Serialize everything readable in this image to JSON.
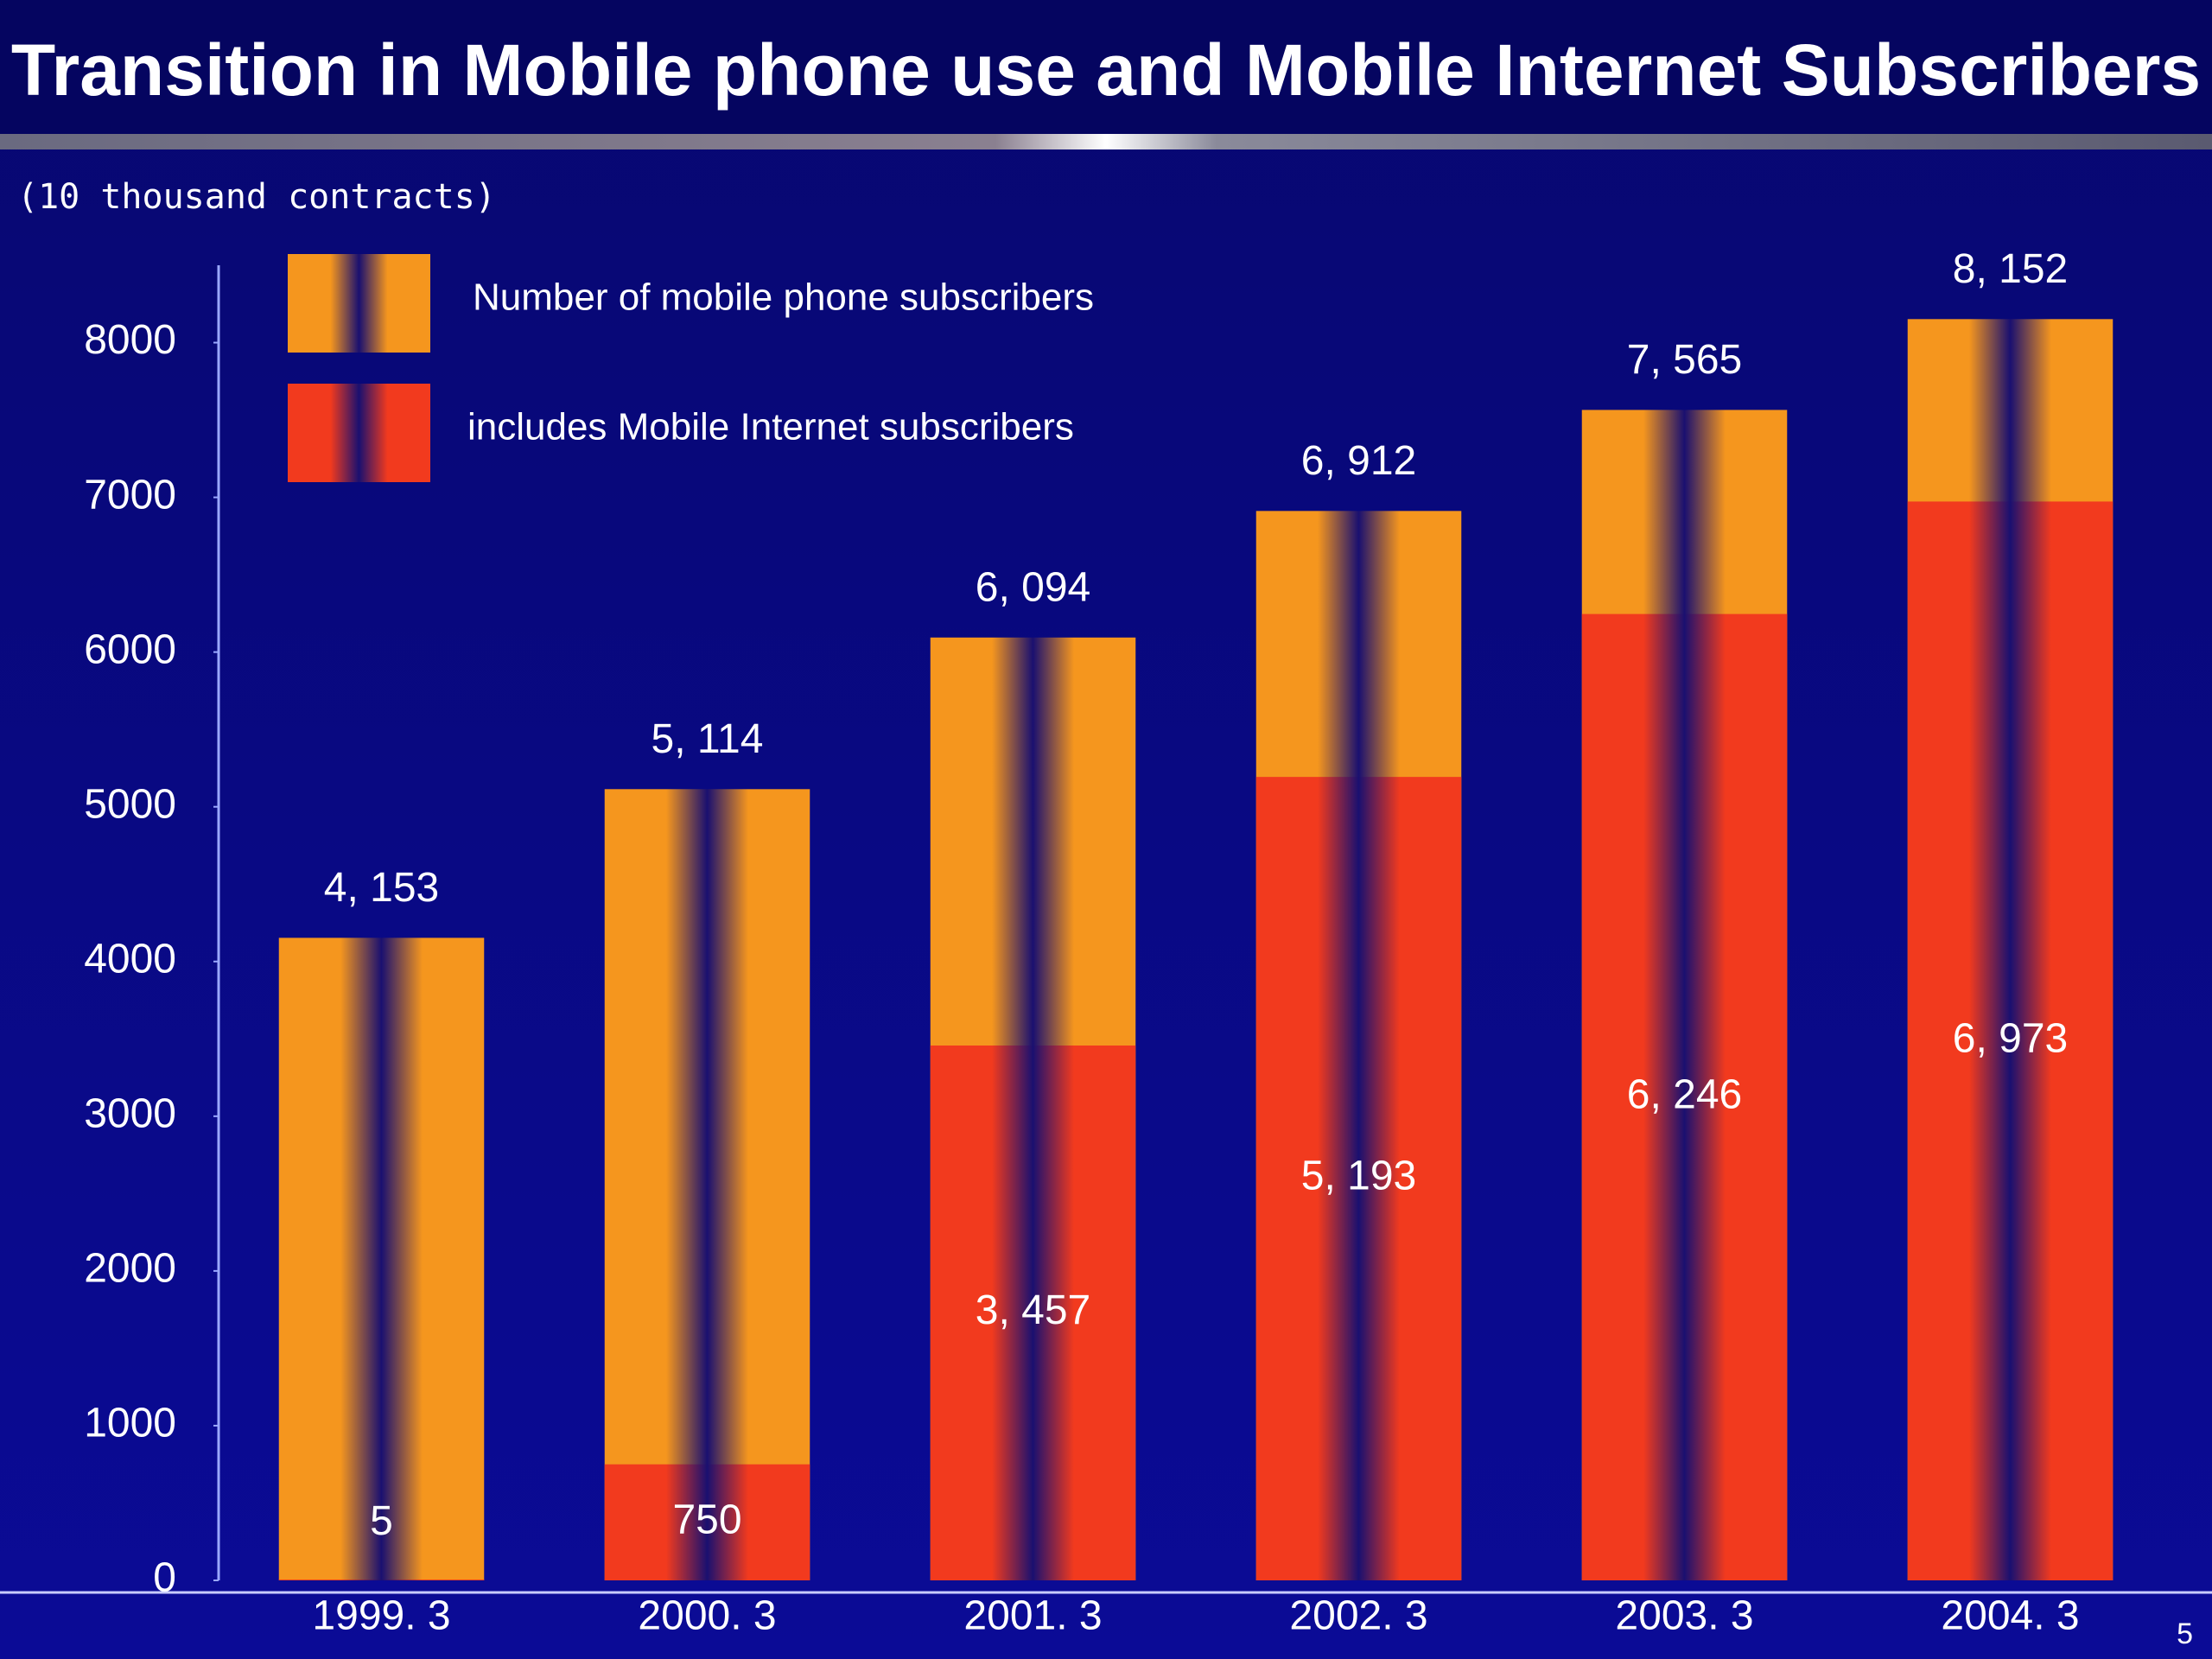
{
  "chart_data": {
    "type": "overlay_bar",
    "title": "Transition in Mobile phone use and Mobile Internet Subscribers",
    "y_axis_label": "(10 thousand contracts)",
    "categories": [
      "1999. 3",
      "2000. 3",
      "2001. 3",
      "2002. 3",
      "2003. 3",
      "2004. 3"
    ],
    "series": [
      {
        "name": "Number of mobile phone subscribers",
        "color": "#f5961e",
        "values": [
          4153,
          5114,
          6094,
          6912,
          7565,
          8152
        ],
        "value_labels": [
          "4, 153",
          "5, 114",
          "6, 094",
          "6, 912",
          "7, 565",
          "8, 152"
        ]
      },
      {
        "name": "includes Mobile Internet subscribers",
        "color": "#f23a1e",
        "values": [
          5,
          750,
          3457,
          5193,
          6246,
          6973
        ],
        "value_labels": [
          "5",
          "750",
          "3, 457",
          "5, 193",
          "6, 246",
          "6, 973"
        ]
      }
    ],
    "ylim": [
      0,
      8500
    ],
    "yticks": [
      0,
      1000,
      2000,
      3000,
      4000,
      5000,
      6000,
      7000,
      8000
    ],
    "page_number": "5"
  }
}
